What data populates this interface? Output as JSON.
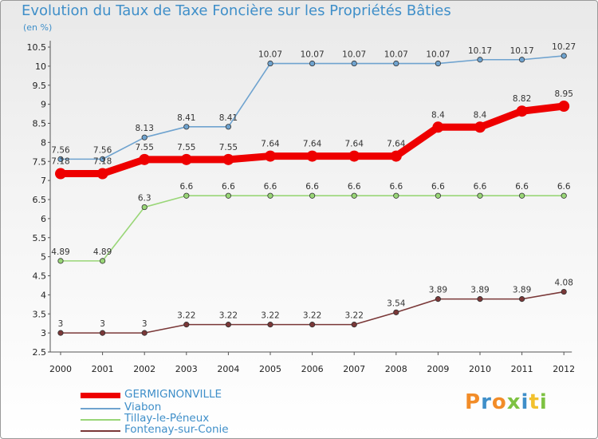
{
  "title": "Evolution du Taux de Taxe Foncière sur les Propriétés Bâties",
  "unit_label": "(en %)",
  "logo": "Proxiti",
  "chart_data": {
    "type": "line",
    "x": [
      "2000",
      "2001",
      "2002",
      "2003",
      "2004",
      "2005",
      "2006",
      "2007",
      "2008",
      "2009",
      "2010",
      "2011",
      "2012"
    ],
    "ylim": [
      2.5,
      10.5
    ],
    "yticks": [
      "2.5",
      "3",
      "3.5",
      "4",
      "4.5",
      "5",
      "5.5",
      "6",
      "6.5",
      "7",
      "7.5",
      "8",
      "8.5",
      "9",
      "9.5",
      "10",
      "10.5"
    ],
    "grid": false,
    "legend_position": "bottom-left",
    "series": [
      {
        "name": "GERMIGNONVILLE",
        "color": "#ee0000",
        "values": [
          7.18,
          7.18,
          7.55,
          7.55,
          7.55,
          7.64,
          7.64,
          7.64,
          7.64,
          8.4,
          8.4,
          8.82,
          8.95
        ],
        "labels": [
          "7.18",
          "7.18",
          "7.55",
          "7.55",
          "7.55",
          "7.64",
          "7.64",
          "7.64",
          "7.64",
          "8.4",
          "8.4",
          "8.82",
          "8.95"
        ]
      },
      {
        "name": "Viabon",
        "color": "#6fa3cf",
        "values": [
          7.56,
          7.56,
          8.13,
          8.41,
          8.41,
          10.07,
          10.07,
          10.07,
          10.07,
          10.07,
          10.17,
          10.17,
          10.27
        ],
        "labels": [
          "7.56",
          "7.56",
          "8.13",
          "8.41",
          "8.41",
          "10.07",
          "10.07",
          "10.07",
          "10.07",
          "10.07",
          "10.17",
          "10.17",
          "10.27"
        ]
      },
      {
        "name": "Tillay-le-Péneux",
        "color": "#99d677",
        "values": [
          4.89,
          4.89,
          6.3,
          6.6,
          6.6,
          6.6,
          6.6,
          6.6,
          6.6,
          6.6,
          6.6,
          6.6,
          6.6
        ],
        "labels": [
          "4.89",
          "4.89",
          "6.3",
          "6.6",
          "6.6",
          "6.6",
          "6.6",
          "6.6",
          "6.6",
          "6.6",
          "6.6",
          "6.6",
          "6.6"
        ]
      },
      {
        "name": "Fontenay-sur-Conie",
        "color": "#7a3838",
        "values": [
          3,
          3,
          3,
          3.22,
          3.22,
          3.22,
          3.22,
          3.22,
          3.54,
          3.89,
          3.89,
          3.89,
          4.08
        ],
        "labels": [
          "3",
          "3",
          "3",
          "3.22",
          "3.22",
          "3.22",
          "3.22",
          "3.22",
          "3.54",
          "3.89",
          "3.89",
          "3.89",
          "4.08"
        ]
      }
    ]
  }
}
